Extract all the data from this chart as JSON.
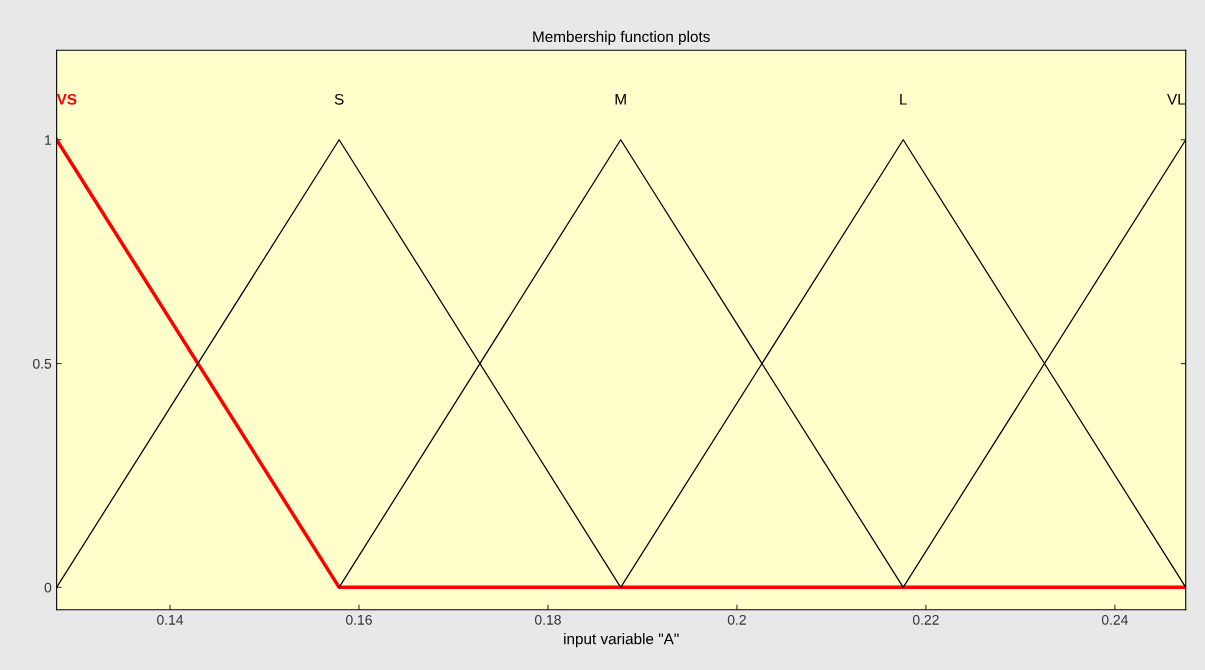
{
  "chart_data": {
    "type": "line",
    "title": "Membership function plots",
    "xlabel": "input variable \"A\"",
    "xlim": [
      0.128,
      0.2475
    ],
    "xticks": [
      0.14,
      0.16,
      0.18,
      0.2,
      0.22,
      0.24
    ],
    "ylim": [
      -0.05,
      1.2
    ],
    "yticks": [
      0,
      0.5,
      1
    ],
    "grid": false,
    "legend": false,
    "series": [
      {
        "name": "VS",
        "color": "#ff0000",
        "x": [
          0.128,
          0.1579,
          0.2475
        ],
        "values": [
          1,
          0,
          0
        ]
      },
      {
        "name": "S",
        "color": "#000000",
        "x": [
          0.128,
          0.1579,
          0.1877
        ],
        "values": [
          0,
          1,
          0
        ]
      },
      {
        "name": "M",
        "color": "#000000",
        "x": [
          0.1579,
          0.1877,
          0.2176
        ],
        "values": [
          0,
          1,
          0
        ]
      },
      {
        "name": "L",
        "color": "#000000",
        "x": [
          0.1877,
          0.2176,
          0.2475
        ],
        "values": [
          0,
          1,
          0
        ]
      },
      {
        "name": "VL",
        "color": "#000000",
        "x": [
          0.2176,
          0.2475
        ],
        "values": [
          0,
          1
        ]
      }
    ]
  }
}
